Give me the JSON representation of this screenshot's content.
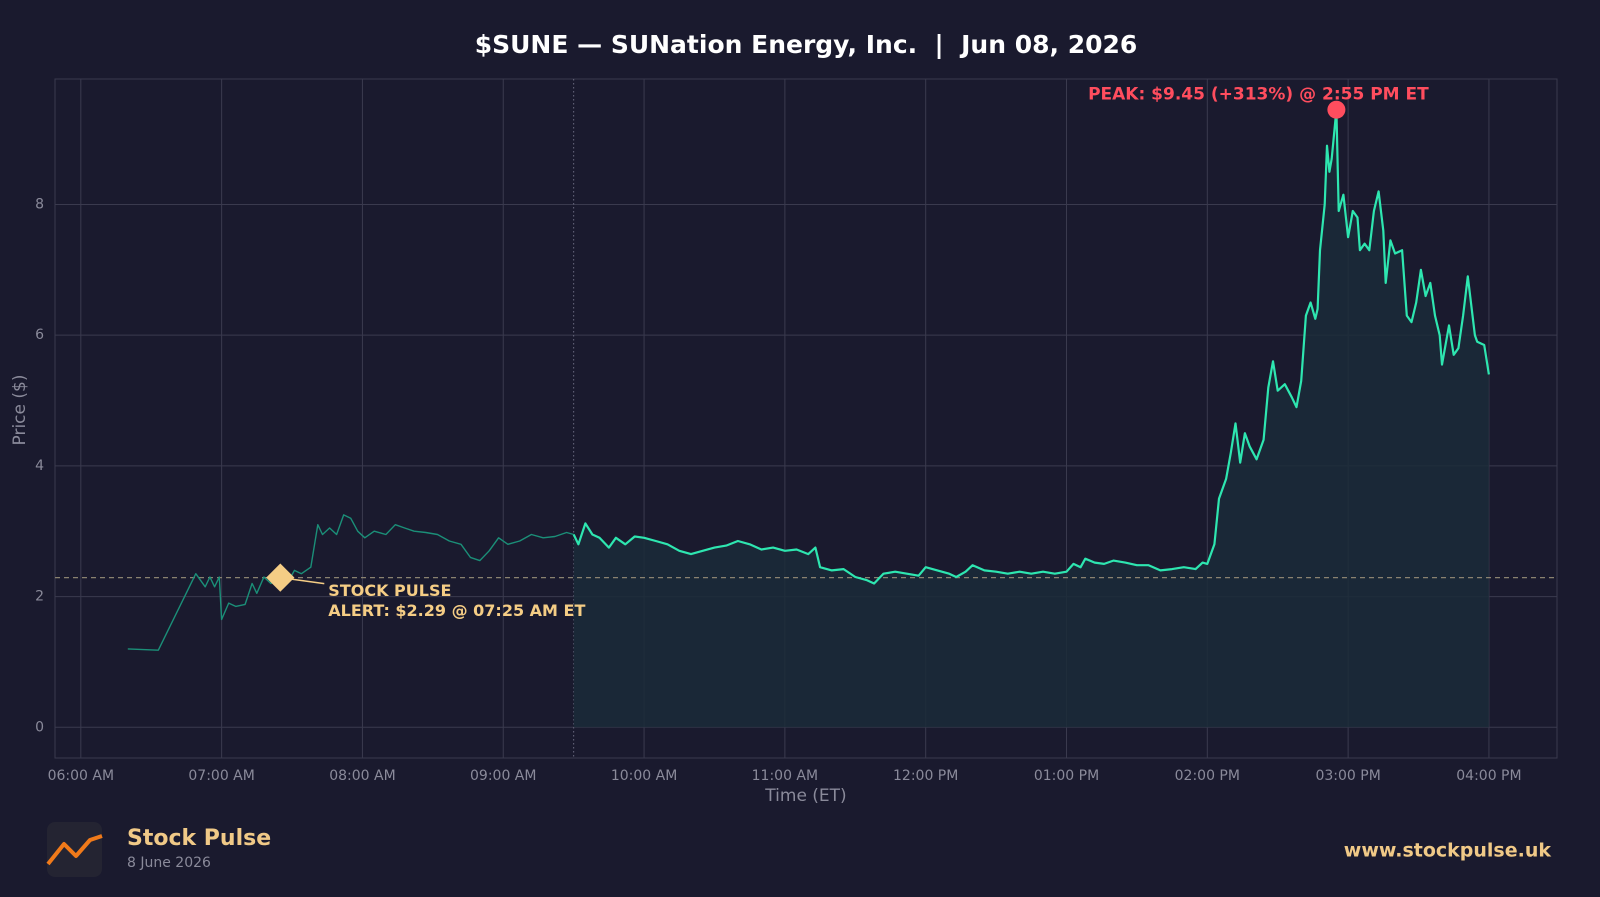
{
  "chart_data": {
    "type": "line",
    "title": "$SUNE — SUNation Energy, Inc.  |  Jun 08, 2026",
    "xlabel": "Time (ET)",
    "ylabel": "Price ($)",
    "color": "#2ee6b0",
    "premarket_color": "#1b8f78",
    "fill_color": "#1b2b38",
    "grid": true,
    "regular_session_start": "09:30 AM",
    "reference_line": 2.29,
    "xlim": [
      "05:49 AM",
      "04:29 PM"
    ],
    "xticks": [
      "06:00 AM",
      "07:00 AM",
      "08:00 AM",
      "09:00 AM",
      "10:00 AM",
      "11:00 AM",
      "12:00 PM",
      "01:00 PM",
      "02:00 PM",
      "03:00 PM",
      "04:00 PM"
    ],
    "ylim": [
      -0.47,
      9.92
    ],
    "yticks": [
      0,
      2,
      4,
      6,
      8
    ],
    "x": [
      "06:20 AM",
      "06:33 AM",
      "06:49 AM",
      "06:53 AM",
      "06:55 AM",
      "06:57 AM",
      "06:59 AM",
      "07:00 AM",
      "07:03 AM",
      "07:06 AM",
      "07:10 AM",
      "07:13 AM",
      "07:15 AM",
      "07:18 AM",
      "07:21 AM",
      "07:25 AM",
      "07:28 AM",
      "07:31 AM",
      "07:34 AM",
      "07:38 AM",
      "07:41 AM",
      "07:43 AM",
      "07:46 AM",
      "07:49 AM",
      "07:52 AM",
      "07:55 AM",
      "07:58 AM",
      "08:01 AM",
      "08:05 AM",
      "08:10 AM",
      "08:14 AM",
      "08:18 AM",
      "08:22 AM",
      "08:27 AM",
      "08:32 AM",
      "08:37 AM",
      "08:42 AM",
      "08:46 AM",
      "08:50 AM",
      "08:54 AM",
      "08:58 AM",
      "09:02 AM",
      "09:07 AM",
      "09:12 AM",
      "09:17 AM",
      "09:22 AM",
      "09:27 AM",
      "09:30 AM",
      "09:32 AM",
      "09:35 AM",
      "09:38 AM",
      "09:41 AM",
      "09:45 AM",
      "09:48 AM",
      "09:52 AM",
      "09:56 AM",
      "10:00 AM",
      "10:05 AM",
      "10:10 AM",
      "10:15 AM",
      "10:20 AM",
      "10:25 AM",
      "10:30 AM",
      "10:35 AM",
      "10:40 AM",
      "10:45 AM",
      "10:50 AM",
      "10:55 AM",
      "11:00 AM",
      "11:05 AM",
      "11:10 AM",
      "11:13 AM",
      "11:15 AM",
      "11:20 AM",
      "11:25 AM",
      "11:30 AM",
      "11:35 AM",
      "11:38 AM",
      "11:42 AM",
      "11:47 AM",
      "11:52 AM",
      "11:57 AM",
      "12:00 PM",
      "12:05 PM",
      "12:10 PM",
      "12:13 PM",
      "12:17 PM",
      "12:20 PM",
      "12:25 PM",
      "12:30 PM",
      "12:35 PM",
      "12:40 PM",
      "12:45 PM",
      "12:50 PM",
      "12:55 PM",
      "01:00 PM",
      "01:03 PM",
      "01:06 PM",
      "01:08 PM",
      "01:12 PM",
      "01:16 PM",
      "01:20 PM",
      "01:25 PM",
      "01:30 PM",
      "01:35 PM",
      "01:40 PM",
      "01:45 PM",
      "01:50 PM",
      "01:55 PM",
      "01:58 PM",
      "02:00 PM",
      "02:03 PM",
      "02:05 PM",
      "02:08 PM",
      "02:10 PM",
      "02:12 PM",
      "02:14 PM",
      "02:16 PM",
      "02:18 PM",
      "02:21 PM",
      "02:24 PM",
      "02:26 PM",
      "02:28 PM",
      "02:30 PM",
      "02:33 PM",
      "02:36 PM",
      "02:38 PM",
      "02:40 PM",
      "02:42 PM",
      "02:44 PM",
      "02:46 PM",
      "02:47 PM",
      "02:48 PM",
      "02:50 PM",
      "02:51 PM",
      "02:52 PM",
      "02:53 PM",
      "02:55 PM",
      "02:56 PM",
      "02:58 PM",
      "03:00 PM",
      "03:02 PM",
      "03:04 PM",
      "03:05 PM",
      "03:07 PM",
      "03:09 PM",
      "03:11 PM",
      "03:13 PM",
      "03:15 PM",
      "03:16 PM",
      "03:18 PM",
      "03:20 PM",
      "03:23 PM",
      "03:25 PM",
      "03:27 PM",
      "03:29 PM",
      "03:31 PM",
      "03:33 PM",
      "03:35 PM",
      "03:37 PM",
      "03:39 PM",
      "03:40 PM",
      "03:43 PM",
      "03:45 PM",
      "03:47 PM",
      "03:49 PM",
      "03:51 PM",
      "03:54 PM",
      "03:55 PM",
      "03:58 PM",
      "04:00 PM"
    ],
    "values": [
      1.2,
      1.18,
      2.35,
      2.15,
      2.3,
      2.15,
      2.3,
      1.65,
      1.9,
      1.85,
      1.88,
      2.2,
      2.05,
      2.3,
      2.2,
      2.29,
      2.2,
      2.4,
      2.35,
      2.45,
      3.1,
      2.95,
      3.05,
      2.95,
      3.25,
      3.2,
      3.0,
      2.9,
      3.0,
      2.95,
      3.1,
      3.05,
      3.0,
      2.98,
      2.95,
      2.85,
      2.8,
      2.6,
      2.55,
      2.7,
      2.9,
      2.8,
      2.85,
      2.95,
      2.9,
      2.92,
      2.98,
      2.95,
      2.8,
      3.12,
      2.95,
      2.9,
      2.75,
      2.9,
      2.8,
      2.92,
      2.9,
      2.85,
      2.8,
      2.7,
      2.65,
      2.7,
      2.75,
      2.78,
      2.85,
      2.8,
      2.72,
      2.75,
      2.7,
      2.72,
      2.65,
      2.75,
      2.45,
      2.4,
      2.42,
      2.3,
      2.25,
      2.2,
      2.35,
      2.38,
      2.35,
      2.32,
      2.45,
      2.4,
      2.35,
      2.3,
      2.38,
      2.48,
      2.4,
      2.38,
      2.35,
      2.38,
      2.35,
      2.38,
      2.35,
      2.38,
      2.5,
      2.45,
      2.58,
      2.52,
      2.5,
      2.55,
      2.52,
      2.48,
      2.48,
      2.4,
      2.42,
      2.45,
      2.42,
      2.52,
      2.5,
      2.8,
      3.5,
      3.8,
      4.2,
      4.65,
      4.05,
      4.5,
      4.3,
      4.1,
      4.4,
      5.2,
      5.6,
      5.15,
      5.25,
      5.05,
      4.9,
      5.3,
      6.3,
      6.5,
      6.25,
      6.4,
      7.3,
      8.0,
      8.9,
      8.5,
      8.7,
      9.45,
      7.9,
      8.15,
      7.5,
      7.9,
      7.8,
      7.3,
      7.4,
      7.3,
      7.9,
      8.2,
      7.6,
      6.8,
      7.45,
      7.25,
      7.3,
      6.3,
      6.2,
      6.5,
      7.0,
      6.6,
      6.8,
      6.3,
      6.0,
      5.55,
      6.15,
      5.7,
      5.8,
      6.3,
      6.9,
      6.0,
      5.9,
      5.85,
      5.4
    ],
    "annotations": [
      {
        "text": [
          "STOCK PULSE",
          "ALERT: $2.29 @ 07:25 AM ET"
        ],
        "x": "07:25 AM",
        "y": 2.29,
        "color": "#f5cd85"
      },
      {
        "text": "PEAK: $9.45 (+313%) @ 2:55 PM ET",
        "x": "02:55 PM",
        "y": 9.45,
        "color": "#ff4d5e"
      }
    ]
  },
  "footer": {
    "brand": "Stock Pulse",
    "date": "8 June 2026",
    "url": "www.stockpulse.uk"
  }
}
